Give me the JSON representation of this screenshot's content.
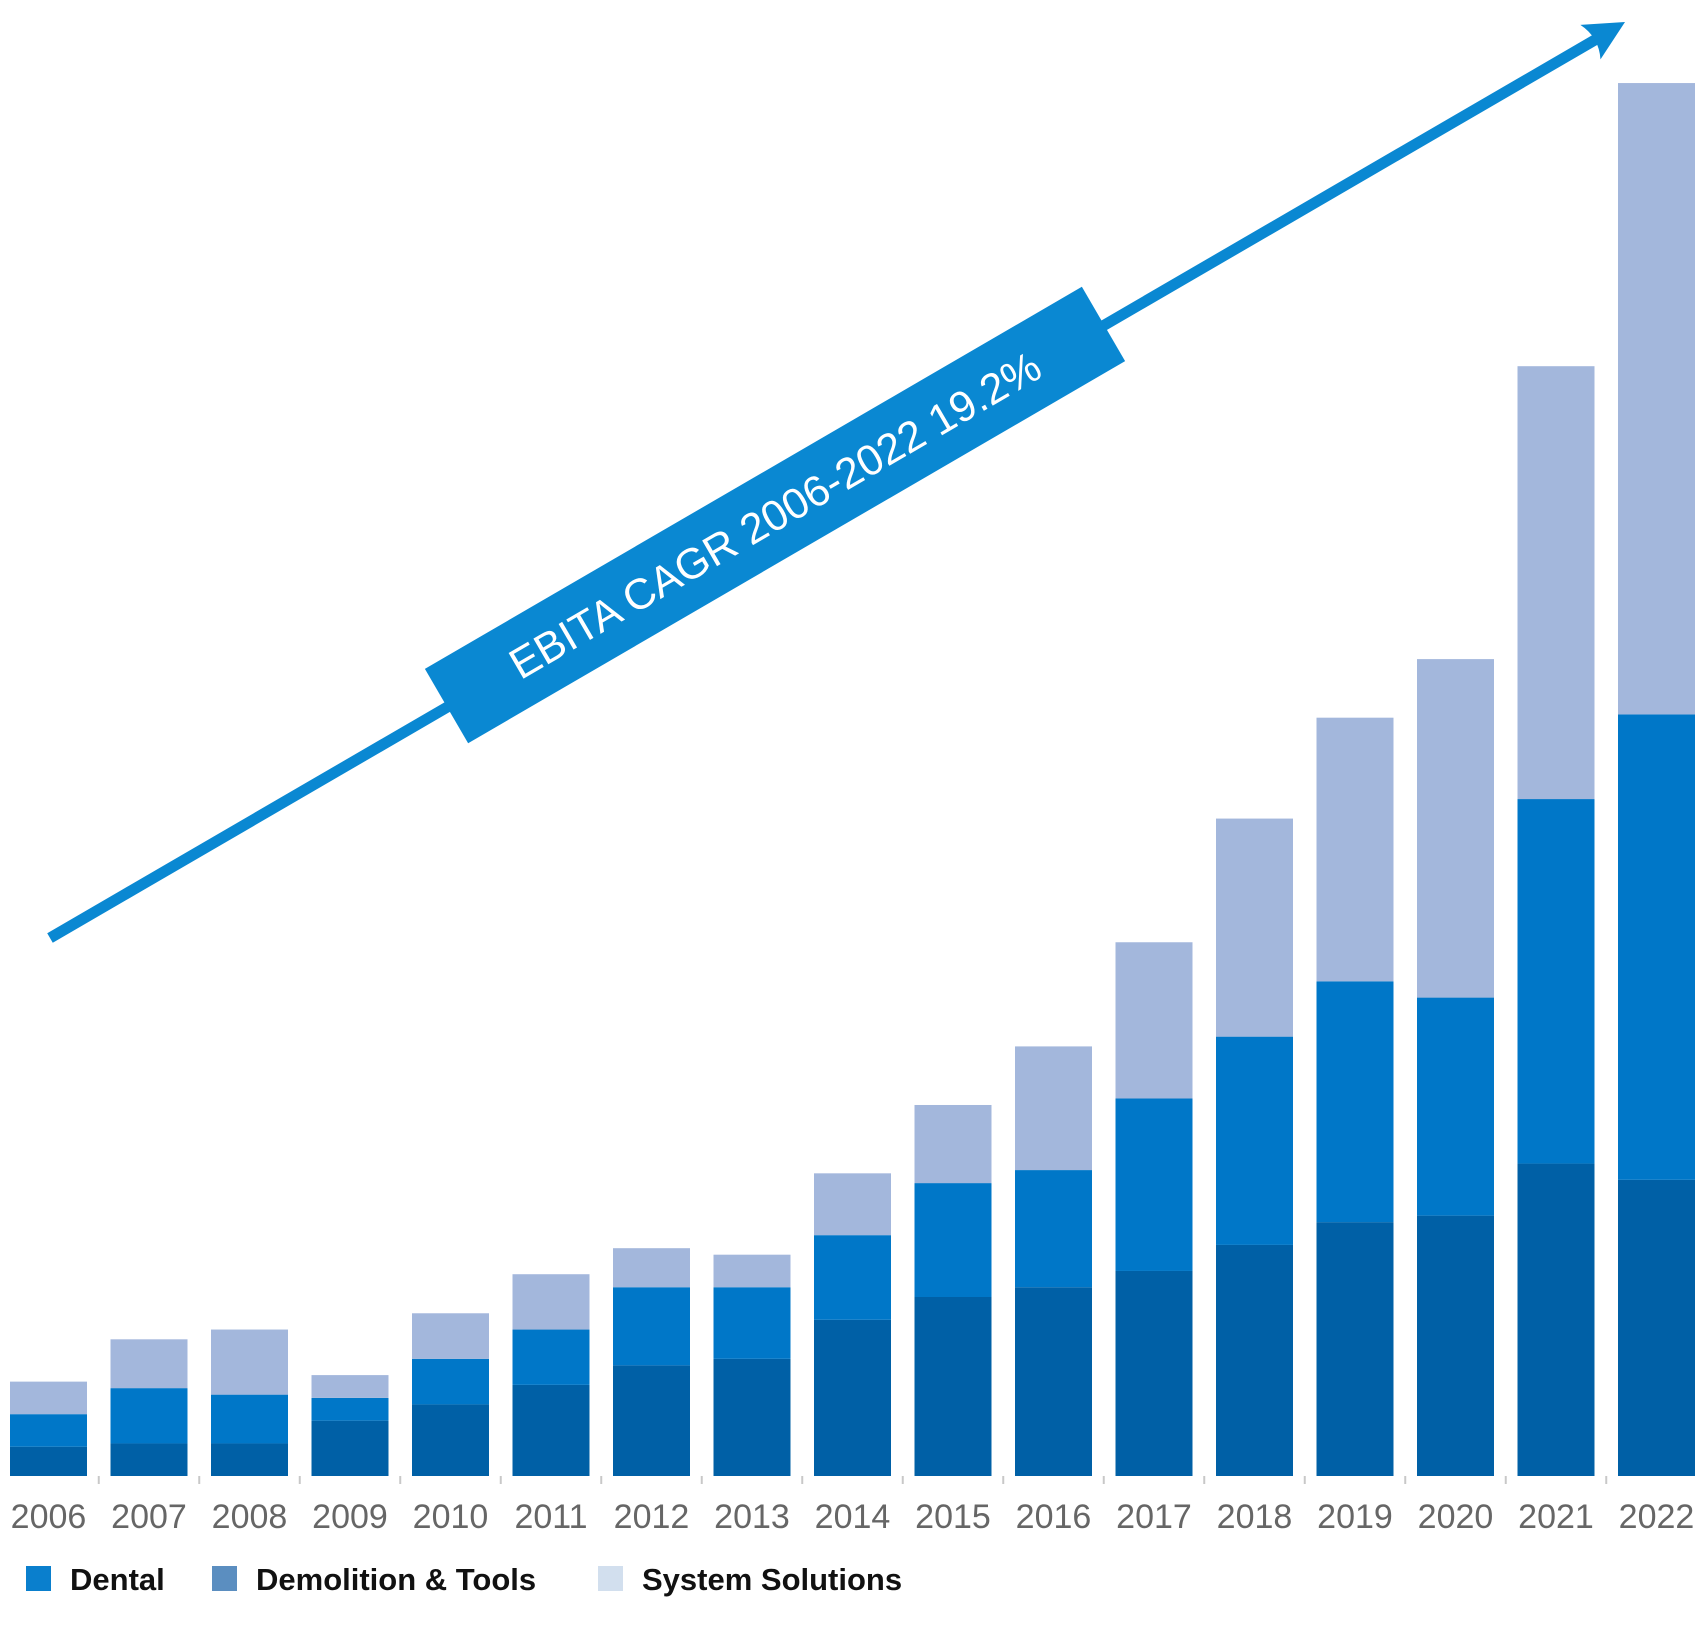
{
  "chart_data": {
    "type": "bar",
    "stacked": true,
    "categories": [
      "2006",
      "2007",
      "2008",
      "2009",
      "2010",
      "2011",
      "2012",
      "2013",
      "2014",
      "2015",
      "2016",
      "2017",
      "2018",
      "2019",
      "2020",
      "2021",
      "2022"
    ],
    "series": [
      {
        "name": "Demolition & Tools",
        "color": "#0060a6",
        "values": [
          0.9,
          1.0,
          1.0,
          1.7,
          2.2,
          2.8,
          3.4,
          3.6,
          4.8,
          5.5,
          5.8,
          6.3,
          7.1,
          7.8,
          8.0,
          9.6,
          9.1
        ]
      },
      {
        "name": "Dental",
        "color": "#0077c8",
        "values": [
          1.0,
          1.7,
          1.5,
          0.7,
          1.4,
          1.7,
          2.4,
          2.2,
          2.6,
          3.5,
          3.6,
          5.3,
          6.4,
          7.4,
          6.7,
          11.2,
          14.3
        ]
      },
      {
        "name": "System Solutions",
        "color": "#a3b7dc",
        "values": [
          1.0,
          1.5,
          2.0,
          0.7,
          1.4,
          1.7,
          1.2,
          1.0,
          1.9,
          2.4,
          3.8,
          4.8,
          6.7,
          8.1,
          10.4,
          13.3,
          19.4
        ]
      }
    ],
    "ylim": [
      0,
      44
    ],
    "grid": false,
    "legend": {
      "position": "bottom-left",
      "entries": [
        {
          "label": "Dental",
          "color": "#0a7fcd"
        },
        {
          "label": "Demolition & Tools",
          "color": "#5b8ec0"
        },
        {
          "label": "System Solutions",
          "color": "#d2dfee"
        }
      ]
    },
    "annotation": {
      "text": "EBITA CAGR 2006-2022 19.2%",
      "color": "#0a88d2"
    },
    "title": "",
    "xlabel": "",
    "ylabel": ""
  }
}
